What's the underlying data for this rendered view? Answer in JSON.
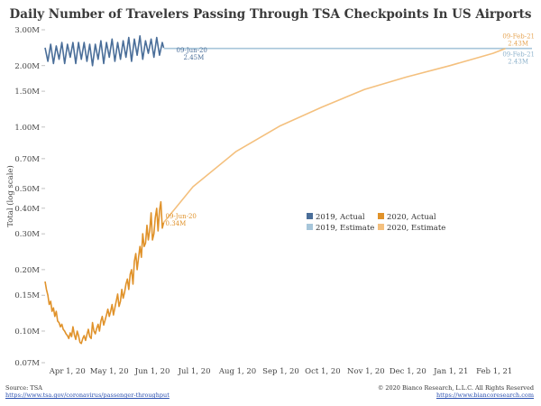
{
  "chart_data": {
    "type": "line",
    "title": "Daily Number of Travelers Passing Through TSA Checkpoints In US Airports",
    "ylabel": "Total (log scale)",
    "xlabel": "",
    "y_scale": "log",
    "ylim": [
      0.07,
      3.0
    ],
    "y_ticks": [
      {
        "value": 3.0,
        "label": "3.00M"
      },
      {
        "value": 2.0,
        "label": "2.00M"
      },
      {
        "value": 1.5,
        "label": "1.50M"
      },
      {
        "value": 1.0,
        "label": "1.00M"
      },
      {
        "value": 0.7,
        "label": "0.70M"
      },
      {
        "value": 0.5,
        "label": "0.50M"
      },
      {
        "value": 0.4,
        "label": "0.40M"
      },
      {
        "value": 0.3,
        "label": "0.30M"
      },
      {
        "value": 0.2,
        "label": "0.20M"
      },
      {
        "value": 0.15,
        "label": "0.15M"
      },
      {
        "value": 0.1,
        "label": "0.10M"
      },
      {
        "value": 0.07,
        "label": "0.07M"
      }
    ],
    "xlim": [
      "2020-03-16",
      "2021-02-28"
    ],
    "x_ticks": [
      {
        "date": "2020-04-01",
        "label": "Apr 1, 20"
      },
      {
        "date": "2020-05-01",
        "label": "May 1, 20"
      },
      {
        "date": "2020-06-01",
        "label": "Jun 1, 20"
      },
      {
        "date": "2020-07-01",
        "label": "Jul 1, 20"
      },
      {
        "date": "2020-08-01",
        "label": "Aug 1, 20"
      },
      {
        "date": "2020-09-01",
        "label": "Sep 1, 20"
      },
      {
        "date": "2020-10-01",
        "label": "Oct 1, 20"
      },
      {
        "date": "2020-11-01",
        "label": "Nov 1, 20"
      },
      {
        "date": "2020-12-01",
        "label": "Dec 1, 20"
      },
      {
        "date": "2021-01-01",
        "label": "Jan 1, 21"
      },
      {
        "date": "2021-02-01",
        "label": "Feb 1, 21"
      }
    ],
    "series": [
      {
        "name": "2019, Actual",
        "color": "#4a6e99",
        "x": [
          "2020-03-16",
          "2020-03-18",
          "2020-03-20",
          "2020-03-22",
          "2020-03-24",
          "2020-03-26",
          "2020-03-28",
          "2020-03-30",
          "2020-04-01",
          "2020-04-03",
          "2020-04-05",
          "2020-04-07",
          "2020-04-09",
          "2020-04-11",
          "2020-04-13",
          "2020-04-15",
          "2020-04-17",
          "2020-04-19",
          "2020-04-21",
          "2020-04-23",
          "2020-04-25",
          "2020-04-27",
          "2020-04-29",
          "2020-05-01",
          "2020-05-03",
          "2020-05-05",
          "2020-05-07",
          "2020-05-09",
          "2020-05-11",
          "2020-05-13",
          "2020-05-15",
          "2020-05-17",
          "2020-05-19",
          "2020-05-21",
          "2020-05-23",
          "2020-05-25",
          "2020-05-27",
          "2020-05-29",
          "2020-05-31",
          "2020-06-02",
          "2020-06-04",
          "2020-06-06",
          "2020-06-08",
          "2020-06-09"
        ],
        "values": [
          2.45,
          2.1,
          2.55,
          2.05,
          2.5,
          2.15,
          2.6,
          2.05,
          2.55,
          2.2,
          2.6,
          2.05,
          2.6,
          2.15,
          2.6,
          2.1,
          2.55,
          2.0,
          2.55,
          2.15,
          2.65,
          2.05,
          2.6,
          2.2,
          2.7,
          2.1,
          2.6,
          2.15,
          2.65,
          2.2,
          2.75,
          2.1,
          2.7,
          2.25,
          2.8,
          2.15,
          2.65,
          2.3,
          2.7,
          2.2,
          2.75,
          2.25,
          2.6,
          2.45
        ]
      },
      {
        "name": "2019, Estimate",
        "color": "#a7c6da",
        "x": [
          "2020-06-09",
          "2021-02-09",
          "2021-02-28"
        ],
        "values": [
          2.43,
          2.43,
          2.43
        ]
      },
      {
        "name": "2020, Actual",
        "color": "#e0922a",
        "x": [
          "2020-03-16",
          "2020-03-17",
          "2020-03-18",
          "2020-03-19",
          "2020-03-20",
          "2020-03-21",
          "2020-03-22",
          "2020-03-23",
          "2020-03-24",
          "2020-03-25",
          "2020-03-26",
          "2020-03-27",
          "2020-03-28",
          "2020-03-29",
          "2020-03-30",
          "2020-03-31",
          "2020-04-01",
          "2020-04-02",
          "2020-04-03",
          "2020-04-04",
          "2020-04-05",
          "2020-04-06",
          "2020-04-07",
          "2020-04-08",
          "2020-04-09",
          "2020-04-10",
          "2020-04-11",
          "2020-04-12",
          "2020-04-13",
          "2020-04-14",
          "2020-04-15",
          "2020-04-16",
          "2020-04-17",
          "2020-04-18",
          "2020-04-19",
          "2020-04-20",
          "2020-04-21",
          "2020-04-22",
          "2020-04-23",
          "2020-04-24",
          "2020-04-25",
          "2020-04-26",
          "2020-04-27",
          "2020-04-28",
          "2020-04-29",
          "2020-04-30",
          "2020-05-01",
          "2020-05-02",
          "2020-05-03",
          "2020-05-04",
          "2020-05-05",
          "2020-05-06",
          "2020-05-07",
          "2020-05-08",
          "2020-05-09",
          "2020-05-10",
          "2020-05-11",
          "2020-05-12",
          "2020-05-13",
          "2020-05-14",
          "2020-05-15",
          "2020-05-16",
          "2020-05-17",
          "2020-05-18",
          "2020-05-19",
          "2020-05-20",
          "2020-05-21",
          "2020-05-22",
          "2020-05-23",
          "2020-05-24",
          "2020-05-25",
          "2020-05-26",
          "2020-05-27",
          "2020-05-28",
          "2020-05-29",
          "2020-05-30",
          "2020-05-31",
          "2020-06-01",
          "2020-06-02",
          "2020-06-03",
          "2020-06-04",
          "2020-06-05",
          "2020-06-06",
          "2020-06-07",
          "2020-06-08",
          "2020-06-09"
        ],
        "values": [
          0.175,
          0.16,
          0.15,
          0.135,
          0.14,
          0.125,
          0.13,
          0.118,
          0.125,
          0.112,
          0.11,
          0.105,
          0.108,
          0.102,
          0.1,
          0.097,
          0.095,
          0.092,
          0.098,
          0.094,
          0.105,
          0.096,
          0.091,
          0.1,
          0.095,
          0.088,
          0.087,
          0.092,
          0.095,
          0.09,
          0.096,
          0.102,
          0.094,
          0.092,
          0.11,
          0.1,
          0.097,
          0.103,
          0.108,
          0.1,
          0.112,
          0.118,
          0.107,
          0.113,
          0.12,
          0.128,
          0.118,
          0.125,
          0.135,
          0.12,
          0.13,
          0.14,
          0.152,
          0.132,
          0.14,
          0.16,
          0.145,
          0.155,
          0.17,
          0.18,
          0.16,
          0.19,
          0.2,
          0.17,
          0.22,
          0.24,
          0.2,
          0.23,
          0.26,
          0.23,
          0.3,
          0.26,
          0.27,
          0.33,
          0.28,
          0.31,
          0.38,
          0.28,
          0.3,
          0.36,
          0.4,
          0.31,
          0.39,
          0.43,
          0.32,
          0.34
        ]
      },
      {
        "name": "2020, Estimate",
        "color": "#f4c07e",
        "x": [
          "2020-06-09",
          "2020-06-30",
          "2020-07-31",
          "2020-08-31",
          "2020-09-30",
          "2020-10-31",
          "2020-11-30",
          "2020-12-31",
          "2021-01-31",
          "2021-02-09"
        ],
        "values": [
          0.34,
          0.51,
          0.76,
          1.01,
          1.25,
          1.53,
          1.76,
          2.0,
          2.3,
          2.43
        ]
      }
    ],
    "annotations": [
      {
        "label": "09-Jun-20",
        "value": "2.45M",
        "series": "2019, Actual"
      },
      {
        "label": "09-Jun-20",
        "value": "0.34M",
        "series": "2020, Actual"
      },
      {
        "label": "09-Feb-21",
        "value": "2.43M",
        "series": "2020, Estimate"
      },
      {
        "label": "09-Feb-21",
        "value": "2.43M",
        "series": "2019, Estimate"
      }
    ],
    "legend_position": "center-right"
  },
  "footer": {
    "source_label": "Source: TSA",
    "source_url": "https://www.tsa.gov/coronavirus/passenger-throughput",
    "copyright": "© 2020 Bianco Research, L.L.C. All Rights Reserved",
    "site_url": "https://www.biancoresearch.com"
  }
}
